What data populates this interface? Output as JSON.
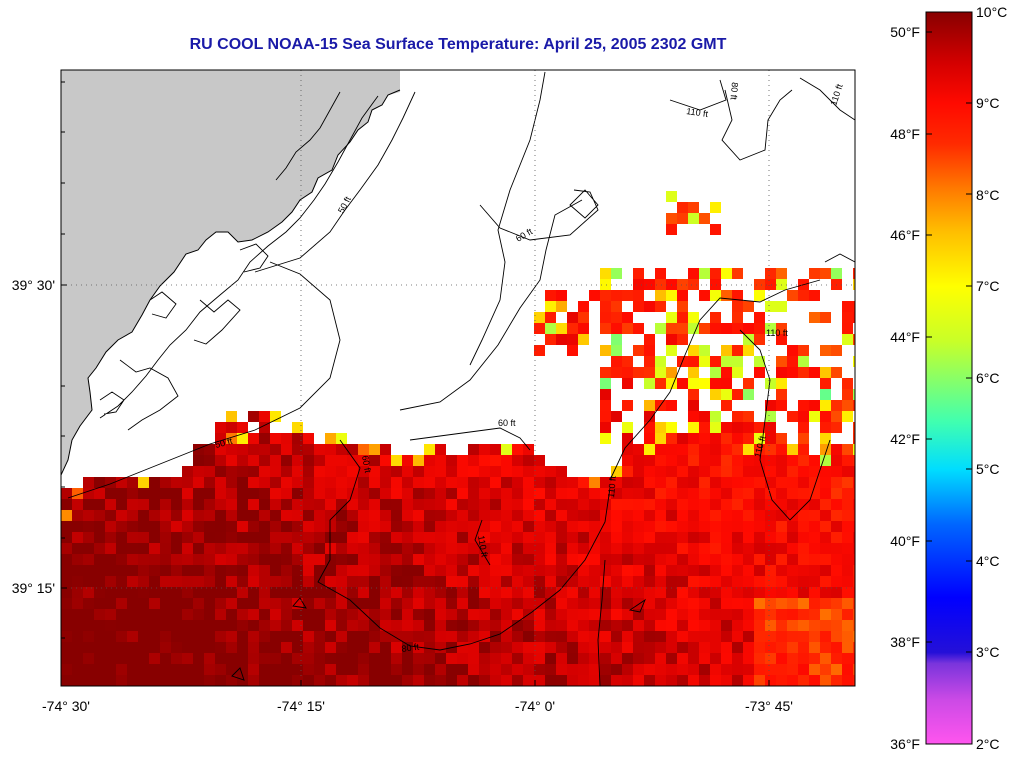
{
  "title": "RU COOL  NOAA-15  Sea Surface Temperature:  April 25, 2005 2302 GMT",
  "map": {
    "lon_labels": [
      "-74° 30'",
      "-74° 15'",
      "-74° 0'",
      "-73° 45'"
    ],
    "lat_labels": [
      "39° 30'",
      "39° 15'"
    ],
    "contour_labels": [
      "50 ft",
      "60 ft",
      "80 ft",
      "110 ft"
    ],
    "colors": {
      "land": "#c8c8c8",
      "missing": "#ffffff",
      "grid": "#555555"
    }
  },
  "colorbar": {
    "celsius_labels": [
      "10°C",
      "9°C",
      "8°C",
      "7°C",
      "6°C",
      "5°C",
      "4°C",
      "3°C",
      "2°C"
    ],
    "fahrenheit_labels": [
      "50°F",
      "48°F",
      "46°F",
      "44°F",
      "42°F",
      "40°F",
      "38°F",
      "36°F"
    ],
    "range_c": [
      2,
      10
    ],
    "colormap": [
      "#ff55ee",
      "#9b40e0",
      "#3a1fd0",
      "#0000ff",
      "#0066ff",
      "#00ccff",
      "#55ffaa",
      "#b4ff3c",
      "#ffff00",
      "#ffb400",
      "#ff6a00",
      "#ff1a00",
      "#e00000",
      "#8a0000"
    ]
  }
}
